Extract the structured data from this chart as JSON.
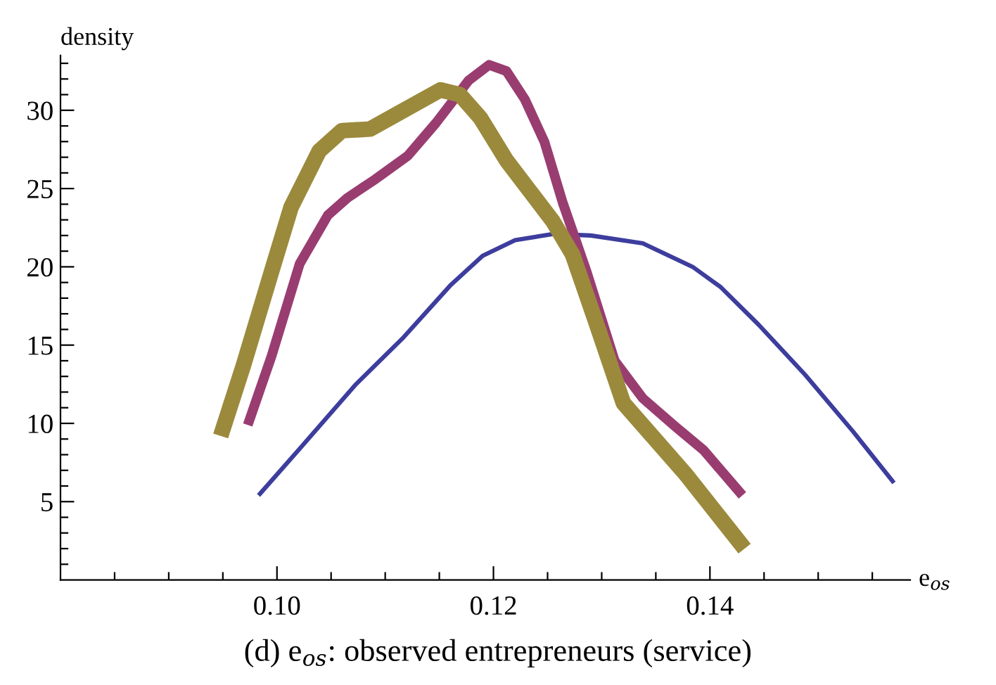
{
  "chart_data": {
    "type": "line",
    "ylabel": "density",
    "xlabel": "e$_{os}$",
    "annotations": [
      "(d) e$_{os}$: observed entrepreneurs (service)"
    ],
    "xlim": [
      0.08,
      0.1585
    ],
    "ylim": [
      0,
      33.5
    ],
    "xticks": [
      {
        "value": 0.085,
        "label": null
      },
      {
        "value": 0.09,
        "label": null
      },
      {
        "value": 0.095,
        "label": null
      },
      {
        "value": 0.1,
        "label": "0.10"
      },
      {
        "value": 0.105,
        "label": null
      },
      {
        "value": 0.11,
        "label": null
      },
      {
        "value": 0.115,
        "label": null
      },
      0.12,
      {
        "value": 0.125,
        "label": null
      },
      {
        "value": 0.13,
        "label": null
      },
      {
        "value": 0.135,
        "label": null
      },
      0.14,
      {
        "value": 0.145,
        "label": null
      },
      {
        "value": 0.15,
        "label": null
      },
      {
        "value": 0.155,
        "label": null
      }
    ],
    "yticks": [
      {
        "value": 1,
        "label": null
      },
      {
        "value": 2,
        "label": null
      },
      {
        "value": 3,
        "label": null
      },
      {
        "value": 4,
        "label": null
      },
      5,
      {
        "value": 6,
        "label": null
      },
      {
        "value": 7,
        "label": null
      },
      {
        "value": 8,
        "label": null
      },
      {
        "value": 9,
        "label": null
      },
      10,
      {
        "value": 11,
        "label": null
      },
      {
        "value": 12,
        "label": null
      },
      {
        "value": 13,
        "label": null
      },
      {
        "value": 14,
        "label": null
      },
      15,
      {
        "value": 16,
        "label": null
      },
      {
        "value": 17,
        "label": null
      },
      {
        "value": 18,
        "label": null
      },
      {
        "value": 19,
        "label": null
      },
      20,
      {
        "value": 21,
        "label": null
      },
      {
        "value": 22,
        "label": null
      },
      {
        "value": 23,
        "label": null
      },
      {
        "value": 24,
        "label": null
      },
      25,
      {
        "value": 26,
        "label": null
      },
      {
        "value": 27,
        "label": null
      },
      {
        "value": 28,
        "label": null
      },
      {
        "value": 29,
        "label": null
      },
      30,
      {
        "value": 31,
        "label": null
      },
      {
        "value": 32,
        "label": null
      },
      {
        "value": 33,
        "label": null
      }
    ],
    "grid": false,
    "legend": false,
    "marker": "none",
    "line_style": "solid",
    "series": [
      {
        "color": "#3d3d9e",
        "x": [
          0.0983,
          0.102,
          0.1073,
          0.1117,
          0.116,
          0.119,
          0.122,
          0.1255,
          0.129,
          0.1338,
          0.1384,
          0.141,
          0.1445,
          0.1488,
          0.1532,
          0.157
        ],
        "values": [
          5.4,
          8.3,
          12.5,
          15.5,
          18.8,
          20.7,
          21.7,
          22.1,
          22.0,
          21.5,
          20.0,
          18.7,
          16.3,
          13.1,
          9.5,
          6.2
        ]
      },
      {
        "color": "#993d71",
        "x": [
          0.0973,
          0.0995,
          0.1021,
          0.1047,
          0.1065,
          0.1091,
          0.1121,
          0.1147,
          0.1177,
          0.1196,
          0.1212,
          0.1229,
          0.1247,
          0.1264,
          0.1286,
          0.1312,
          0.1338,
          0.1368,
          0.1394,
          0.143
        ],
        "values": [
          9.9,
          14.3,
          20.2,
          23.3,
          24.4,
          25.6,
          27.1,
          29.2,
          31.9,
          32.9,
          32.5,
          30.7,
          28.0,
          24.1,
          19.7,
          14.0,
          11.6,
          9.8,
          8.3,
          5.4
        ]
      },
      {
        "color": "#9b8a3c",
        "x": [
          0.0948,
          0.0969,
          0.0995,
          0.1013,
          0.1039,
          0.106,
          0.1086,
          0.1112,
          0.1151,
          0.1169,
          0.1188,
          0.1212,
          0.1255,
          0.1273,
          0.1294,
          0.132,
          0.1377,
          0.1432
        ],
        "values": [
          9.2,
          13.7,
          19.7,
          23.8,
          27.4,
          28.7,
          28.8,
          29.8,
          31.3,
          31.0,
          29.5,
          26.8,
          22.9,
          20.8,
          16.6,
          11.3,
          6.8,
          2.0
        ]
      }
    ]
  }
}
